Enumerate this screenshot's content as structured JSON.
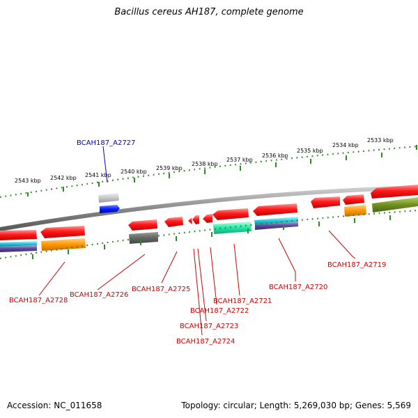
{
  "title": "Bacillus cereus AH187, complete genome",
  "footer": {
    "accession": "Accession: NC_011658",
    "summary": "Topology: circular; Length: 5,269,030 bp; Genes: 5,569"
  },
  "colors": {
    "cds": "#ff0000",
    "highlight": "#0000cc",
    "tick": "#2e8b22",
    "backbone": "#8a8a8a"
  },
  "ruler": {
    "unit": "kbp",
    "labels": [
      "2543 kbp",
      "2542 kbp",
      "2541 kbp",
      "2540 kbp",
      "2539 kbp",
      "2538 kbp",
      "2537 kbp",
      "2536 kbp",
      "2535 kbp",
      "2534 kbp",
      "2533 kbp"
    ]
  },
  "genes": [
    {
      "id": "BCAH187_A2727",
      "color": "#0000cc"
    },
    {
      "id": "BCAH187_A2728",
      "color": "#cc0000"
    },
    {
      "id": "BCAH187_A2726",
      "color": "#cc0000"
    },
    {
      "id": "BCAH187_A2725",
      "color": "#cc0000"
    },
    {
      "id": "BCAH187_A2724",
      "color": "#cc0000"
    },
    {
      "id": "BCAH187_A2723",
      "color": "#cc0000"
    },
    {
      "id": "BCAH187_A2722",
      "color": "#cc0000"
    },
    {
      "id": "BCAH187_A2721",
      "color": "#cc0000"
    },
    {
      "id": "BCAH187_A2720",
      "color": "#cc0000"
    },
    {
      "id": "BCAH187_A2719",
      "color": "#cc0000"
    }
  ]
}
